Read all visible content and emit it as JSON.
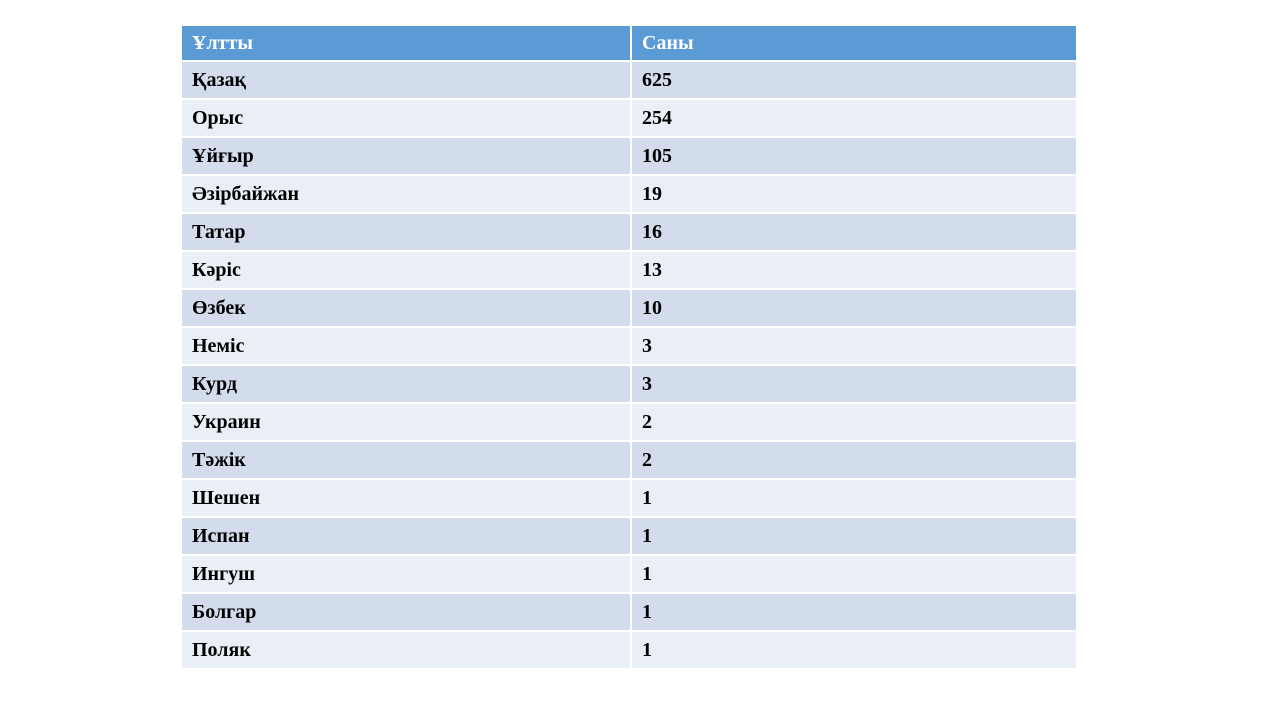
{
  "table": {
    "columns": [
      {
        "label": "Ұлтты"
      },
      {
        "label": "Саны"
      }
    ],
    "rows": [
      {
        "nationality": "Қазақ",
        "count": "625"
      },
      {
        "nationality": "Орыс",
        "count": "254"
      },
      {
        "nationality": "Ұйғыр",
        "count": "105"
      },
      {
        "nationality": "Әзірбайжан",
        "count": "19"
      },
      {
        "nationality": "Татар",
        "count": "16"
      },
      {
        "nationality": "Кәріс",
        "count": "13"
      },
      {
        "nationality": "Өзбек",
        "count": "10"
      },
      {
        "nationality": "Неміс",
        "count": "3"
      },
      {
        "nationality": "Курд",
        "count": "3"
      },
      {
        "nationality": "Украин",
        "count": "2"
      },
      {
        "nationality": "Тәжік",
        "count": "2"
      },
      {
        "nationality": "Шешен",
        "count": "1"
      },
      {
        "nationality": "Испан",
        "count": "1"
      },
      {
        "nationality": "Ингуш",
        "count": "1"
      },
      {
        "nationality": "Болгар",
        "count": "1"
      },
      {
        "nationality": "Поляк",
        "count": "1"
      }
    ],
    "colors": {
      "header_bg": "#5b9bd5",
      "header_text": "#ffffff",
      "row_odd_bg": "#d2dcec",
      "row_even_bg": "#e9eef7",
      "separator": "#ffffff",
      "body_text": "#000000"
    }
  },
  "chart_data": {
    "type": "table",
    "title": "",
    "columns": [
      "Ұлтты",
      "Саны"
    ],
    "categories": [
      "Қазақ",
      "Орыс",
      "Ұйғыр",
      "Әзірбайжан",
      "Татар",
      "Кәріс",
      "Өзбек",
      "Неміс",
      "Курд",
      "Украин",
      "Тәжік",
      "Шешен",
      "Испан",
      "Ингуш",
      "Болгар",
      "Поляк"
    ],
    "values": [
      625,
      254,
      105,
      19,
      16,
      13,
      10,
      3,
      3,
      2,
      2,
      1,
      1,
      1,
      1,
      1
    ]
  }
}
